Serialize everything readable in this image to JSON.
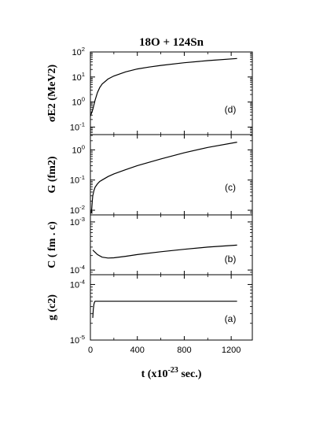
{
  "chart_data": [
    {
      "type": "line",
      "panel": "d",
      "title": "18O + 124Sn",
      "ylabel": "σE2 (MeV2)",
      "y_scale": "log",
      "ylim": [
        0.05,
        100
      ],
      "y_ticks": [
        {
          "value": 100,
          "label": "10",
          "exp": "2"
        },
        {
          "value": 10,
          "label": "10",
          "exp": "1"
        },
        {
          "value": 1,
          "label": "10",
          "exp": "0"
        },
        {
          "value": 0.1,
          "label": "10",
          "exp": "-1"
        }
      ],
      "panel_label": "(d)",
      "x": [
        0,
        20,
        40,
        60,
        80,
        100,
        150,
        200,
        300,
        400,
        500,
        600,
        800,
        1000,
        1250
      ],
      "y": [
        0.27,
        0.5,
        1.2,
        2.4,
        3.8,
        5.2,
        8.3,
        11,
        16,
        21,
        25,
        29,
        37,
        45,
        55
      ]
    },
    {
      "type": "line",
      "panel": "c",
      "ylabel": "G (fm2)",
      "y_scale": "log",
      "ylim": [
        0.007,
        3.2
      ],
      "y_ticks": [
        {
          "value": 1,
          "label": "10",
          "exp": "0"
        },
        {
          "value": 0.1,
          "label": "10",
          "exp": "-1"
        },
        {
          "value": 0.01,
          "label": "10",
          "exp": "-2"
        }
      ],
      "panel_label": "(c)",
      "x": [
        8,
        12,
        16,
        20,
        30,
        40,
        60,
        80,
        100,
        150,
        200,
        300,
        400,
        600,
        800,
        1000,
        1250
      ],
      "y": [
        0.008,
        0.012,
        0.02,
        0.03,
        0.045,
        0.058,
        0.075,
        0.09,
        0.1,
        0.13,
        0.16,
        0.22,
        0.3,
        0.5,
        0.8,
        1.2,
        1.8
      ]
    },
    {
      "type": "line",
      "panel": "b",
      "ylabel": "C ( fm . c)",
      "y_scale": "log",
      "ylim": [
        8e-05,
        0.0014
      ],
      "y_ticks": [
        {
          "value": 0.001,
          "label": "10",
          "exp": "-3"
        },
        {
          "value": 0.0001,
          "label": "10",
          "exp": "-4"
        }
      ],
      "panel_label": "(b)",
      "x": [
        20,
        60,
        100,
        150,
        200,
        300,
        400,
        600,
        800,
        1000,
        1250
      ],
      "y": [
        0.00026,
        0.00021,
        0.000185,
        0.000178,
        0.00018,
        0.000193,
        0.00021,
        0.00024,
        0.00027,
        0.0003,
        0.00033
      ]
    },
    {
      "type": "line",
      "panel": "a",
      "ylabel": "g (c2)",
      "y_scale": "log",
      "ylim": [
        1e-05,
        0.00015
      ],
      "y_ticks": [
        {
          "value": 0.0001,
          "label": "10",
          "exp": "-4"
        },
        {
          "value": 1e-05,
          "label": "10",
          "exp": "-5"
        }
      ],
      "panel_label": "(a)",
      "x": [
        20,
        25,
        30,
        35,
        40,
        50,
        100,
        400,
        800,
        1250
      ],
      "y": [
        2.5e-05,
        3.6e-05,
        4.4e-05,
        4.8e-05,
        5e-05,
        5e-05,
        5e-05,
        5e-05,
        5e-05,
        5e-05
      ]
    }
  ],
  "x_axis": {
    "label": "t (x10",
    "label_exp": "-23",
    "label_tail": " sec.)",
    "xlim": [
      0,
      1380
    ],
    "ticks": [
      0,
      400,
      800,
      1200
    ],
    "tick_labels": [
      "0",
      "400",
      "800",
      "1200"
    ]
  }
}
